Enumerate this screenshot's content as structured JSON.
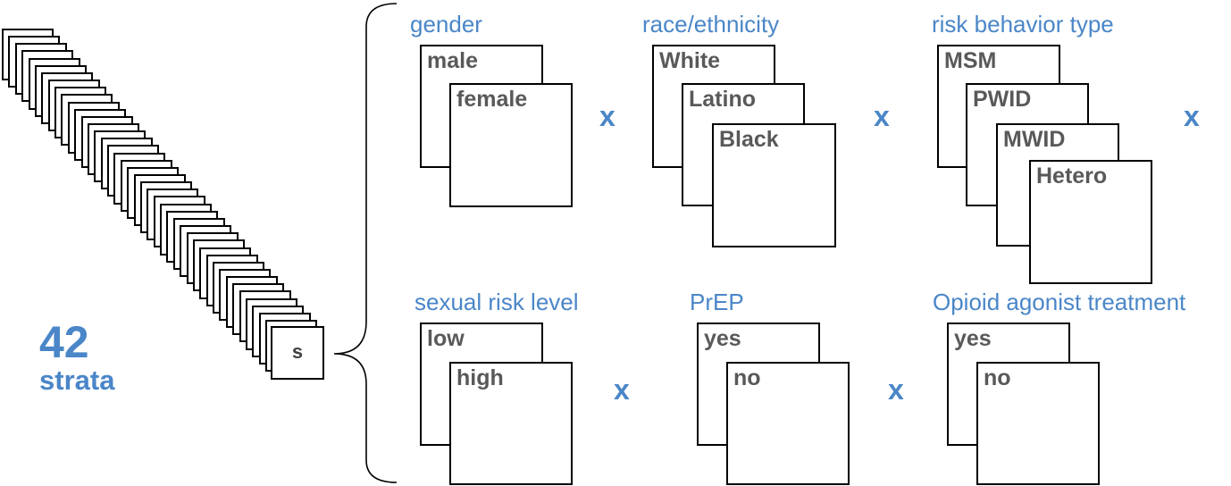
{
  "summary": {
    "count": "42",
    "unit": "strata"
  },
  "stratum_card": {
    "label": "s"
  },
  "times_symbol": "x",
  "accent_color": "#4a86c8",
  "dimensions": [
    {
      "title": "gender",
      "levels": [
        "male",
        "female"
      ]
    },
    {
      "title": "race/ethnicity",
      "levels": [
        "White",
        "Latino",
        "Black"
      ]
    },
    {
      "title": "risk behavior type",
      "levels": [
        "MSM",
        "PWID",
        "MWID",
        "Hetero"
      ]
    },
    {
      "title": "sexual risk level",
      "levels": [
        "low",
        "high"
      ]
    },
    {
      "title": "PrEP",
      "levels": [
        "yes",
        "no"
      ]
    },
    {
      "title": "Opioid agonist treatment",
      "levels": [
        "yes",
        "no"
      ]
    }
  ]
}
